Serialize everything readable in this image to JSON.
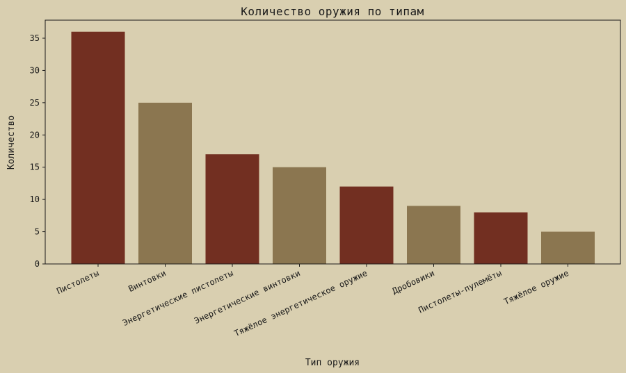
{
  "chart_data": {
    "type": "bar",
    "title": "Количество оружия по типам",
    "xlabel": "Тип оружия",
    "ylabel": "Количество",
    "categories": [
      "Пистолеты",
      "Винтовки",
      "Энергетические пистолеты",
      "Энергетические винтовки",
      "Тяжёлое энергетическое оружие",
      "Дробовики",
      "Пистолеты-пулемёты",
      "Тяжёлое оружие"
    ],
    "values": [
      36,
      25,
      17,
      15,
      12,
      9,
      8,
      5
    ],
    "bar_colors": [
      "#722f21",
      "#8b7650",
      "#722f21",
      "#8b7650",
      "#722f21",
      "#8b7650",
      "#722f21",
      "#8b7650"
    ],
    "y_ticks": [
      0,
      5,
      10,
      15,
      20,
      25,
      30,
      35
    ],
    "ylim": [
      0,
      37.8
    ],
    "grid": false,
    "legend": "none"
  },
  "colors": {
    "background": "#d9cfb0",
    "axis": "#1a1a1a"
  }
}
